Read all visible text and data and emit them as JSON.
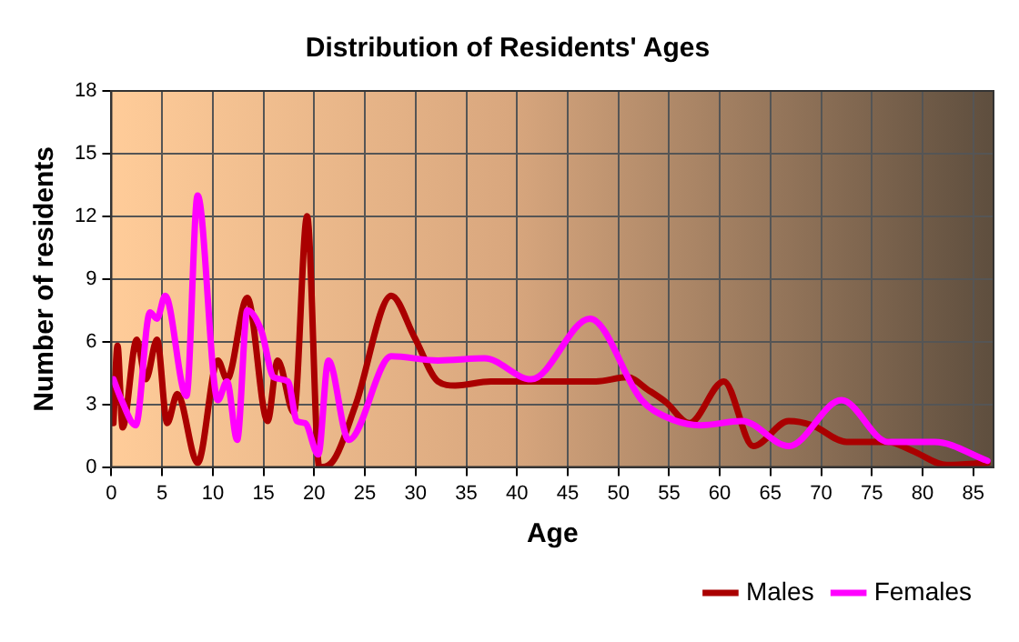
{
  "chart_data": {
    "type": "line",
    "title": "Distribution of Residents' Ages",
    "xlabel": "Age",
    "ylabel": "Number of residents",
    "xlim": [
      0,
      87
    ],
    "xticks": [
      0,
      5,
      10,
      15,
      20,
      25,
      30,
      35,
      40,
      45,
      50,
      55,
      60,
      65,
      70,
      75,
      80,
      85
    ],
    "ylim": [
      0,
      18
    ],
    "yticks": [
      0,
      3,
      6,
      9,
      12,
      15,
      18
    ],
    "grid": true,
    "legend": "bottom right",
    "marker": "none",
    "line_style": "solid",
    "series": [
      {
        "name": "Males",
        "color": "#aa0000",
        "x": [
          0.2,
          0.6,
          1.1,
          2.5,
          3.4,
          4.5,
          5.5,
          6.5,
          8.5,
          10.5,
          11.4,
          13.4,
          15.4,
          16.4,
          18,
          19.3,
          20.5,
          21.7,
          24.1,
          27.6,
          29.9,
          32.2,
          33.9,
          37.4,
          42,
          47.8,
          50.9,
          52.9,
          54.7,
          57,
          60.4,
          63.3,
          66.8,
          69.1,
          72.5,
          76.6,
          78.9,
          82.4,
          86.4
        ],
        "values": [
          2.1,
          5.8,
          1.9,
          6.1,
          4.2,
          6.1,
          2.1,
          3.5,
          0.2,
          5.1,
          4.2,
          8.1,
          2.2,
          5.1,
          2.6,
          12,
          0,
          0.2,
          3,
          8.2,
          6.2,
          4.1,
          3.9,
          4.1,
          4.1,
          4.1,
          4.3,
          3.7,
          3.1,
          2.1,
          4.1,
          1,
          2.2,
          2,
          1.2,
          1.2,
          0.8,
          0.1,
          0.2
        ]
      },
      {
        "name": "Females",
        "color": "#ff00ff",
        "x": [
          0.2,
          1,
          2.4,
          3.8,
          4.5,
          5.3,
          7.4,
          8.5,
          10.5,
          11.4,
          12.4,
          13.4,
          14.8,
          16,
          17.4,
          18.3,
          19.1,
          20.4,
          21.4,
          23.4,
          27.6,
          32.2,
          36.8,
          41.4,
          47.2,
          52.3,
          54.7,
          58.1,
          62.2,
          66.8,
          72,
          76.6,
          81.2,
          86.4
        ],
        "values": [
          4.2,
          3.2,
          2,
          7.4,
          7.1,
          8.2,
          3.4,
          13,
          3.2,
          4.1,
          1.3,
          7.5,
          6.5,
          4.3,
          4.1,
          2.2,
          2.1,
          0.6,
          5.1,
          1.3,
          5.3,
          5.1,
          5.2,
          4.2,
          7.1,
          3.2,
          2.4,
          2,
          2.2,
          1,
          3.2,
          1.2,
          1.2,
          0.3
        ]
      }
    ]
  }
}
